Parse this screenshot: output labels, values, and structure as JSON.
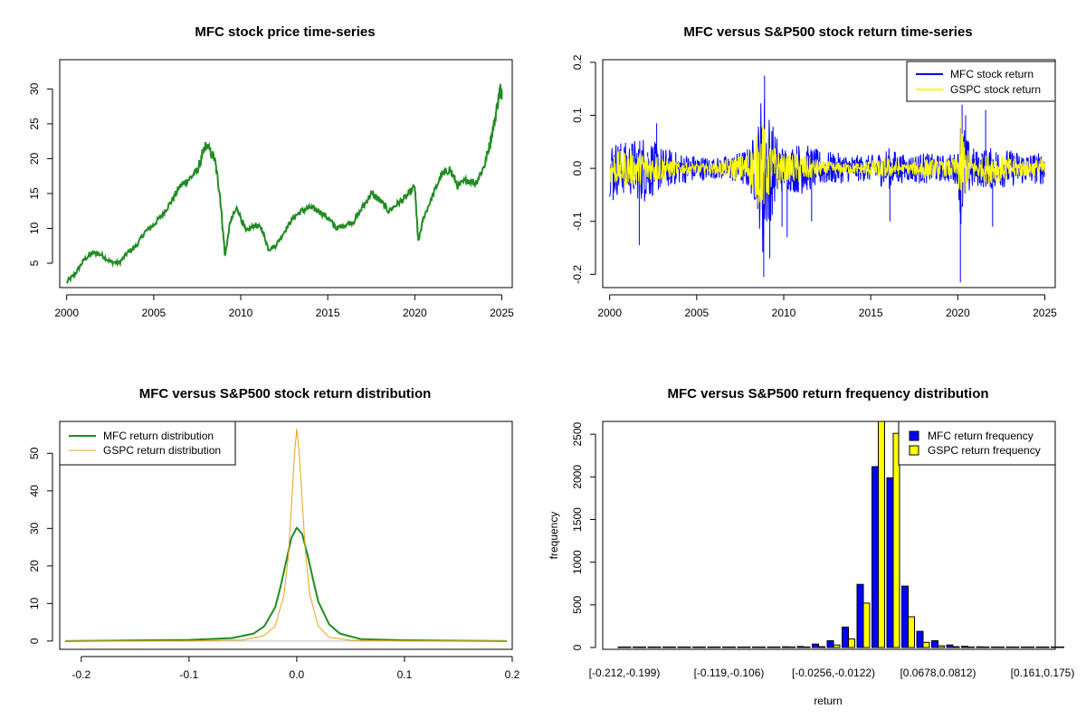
{
  "panels": {
    "p1": {
      "title": "MFC stock price time-series"
    },
    "p2": {
      "title": "MFC versus S&P500 stock return time-series"
    },
    "p3": {
      "title": "MFC versus S&P500 stock return distribution"
    },
    "p4": {
      "title": "MFC versus S&P500 return frequency distribution"
    }
  },
  "chart_data": [
    {
      "type": "line",
      "title": "MFC stock price time-series",
      "xlabel": "",
      "ylabel": "",
      "xlim": [
        1999.6,
        2025.6
      ],
      "ylim": [
        1.5,
        34.2
      ],
      "xticks": [
        2000,
        2005,
        2010,
        2015,
        2020,
        2025
      ],
      "yticks": [
        5,
        10,
        15,
        20,
        25,
        30
      ],
      "color": "#228B22",
      "x": [
        2000.0,
        2000.5,
        2001.0,
        2001.5,
        2002.0,
        2002.5,
        2003.0,
        2003.5,
        2004.0,
        2004.5,
        2005.0,
        2005.5,
        2006.0,
        2006.5,
        2007.0,
        2007.5,
        2007.8,
        2008.0,
        2008.5,
        2008.8,
        2009.1,
        2009.4,
        2009.8,
        2010.3,
        2010.8,
        2011.2,
        2011.6,
        2012.0,
        2012.5,
        2013.0,
        2013.5,
        2014.0,
        2014.5,
        2015.0,
        2015.5,
        2016.0,
        2016.5,
        2017.0,
        2017.5,
        2018.0,
        2018.5,
        2019.0,
        2019.5,
        2020.0,
        2020.2,
        2020.5,
        2021.0,
        2021.5,
        2022.0,
        2022.5,
        2023.0,
        2023.5,
        2024.0,
        2024.3,
        2024.6,
        2024.9,
        2025.0
      ],
      "y": [
        2.3,
        3.5,
        5.5,
        6.5,
        6.2,
        5.2,
        5.0,
        6.5,
        7.5,
        9.5,
        10.5,
        12.0,
        13.8,
        16.0,
        17.0,
        18.2,
        20.5,
        22.0,
        20.0,
        15.0,
        6.0,
        11.0,
        13.0,
        9.5,
        10.5,
        10.0,
        7.0,
        7.5,
        9.5,
        11.5,
        12.5,
        13.0,
        12.5,
        11.5,
        10.0,
        10.5,
        11.0,
        13.0,
        15.0,
        14.0,
        12.5,
        13.5,
        14.5,
        16.0,
        8.0,
        11.5,
        14.5,
        17.5,
        18.5,
        16.0,
        17.0,
        16.5,
        19.0,
        22.0,
        25.5,
        30.0,
        29.5
      ]
    },
    {
      "type": "line",
      "title": "MFC versus S&P500 stock return time-series",
      "xlabel": "",
      "ylabel": "",
      "xlim": [
        1999.6,
        2025.6
      ],
      "ylim": [
        -0.225,
        0.205
      ],
      "xticks": [
        2000,
        2005,
        2010,
        2015,
        2020,
        2025
      ],
      "yticks": [
        -0.2,
        -0.1,
        0.0,
        0.1,
        0.2
      ],
      "ytick_labels": [
        "-0.2",
        "-0.1",
        "0.0",
        "0.1",
        "0.2"
      ],
      "legend": [
        {
          "label": "MFC stock return",
          "color": "#0000FF"
        },
        {
          "label": "GSPC stock return",
          "color": "#FFFF00"
        }
      ],
      "legend_position": "top-right",
      "series": [
        {
          "name": "MFC stock return",
          "color": "#0000FF",
          "envelope_x": [
            2000,
            2001,
            2002,
            2003,
            2004,
            2005,
            2006,
            2007,
            2008,
            2008.5,
            2008.8,
            2009.0,
            2009.5,
            2010,
            2011,
            2012,
            2013,
            2014,
            2015,
            2016,
            2017,
            2018,
            2019,
            2020.0,
            2020.2,
            2020.5,
            2021,
            2022,
            2023,
            2024,
            2025
          ],
          "envelope": [
            0.055,
            0.05,
            0.065,
            0.04,
            0.03,
            0.025,
            0.02,
            0.025,
            0.04,
            0.08,
            0.175,
            0.13,
            0.07,
            0.04,
            0.05,
            0.035,
            0.03,
            0.025,
            0.025,
            0.04,
            0.025,
            0.03,
            0.025,
            0.03,
            0.12,
            0.06,
            0.035,
            0.04,
            0.035,
            0.03,
            0.03
          ],
          "spikes": [
            [
              2000.2,
              -0.06
            ],
            [
              2001.7,
              -0.145
            ],
            [
              2002.7,
              0.085
            ],
            [
              2008.85,
              -0.205
            ],
            [
              2008.9,
              0.175
            ],
            [
              2009.2,
              -0.17
            ],
            [
              2009.9,
              -0.11
            ],
            [
              2010.2,
              -0.13
            ],
            [
              2011.6,
              -0.1
            ],
            [
              2016.1,
              -0.1
            ],
            [
              2020.15,
              -0.215
            ],
            [
              2020.25,
              0.12
            ],
            [
              2021.6,
              0.11
            ],
            [
              2022.0,
              -0.11
            ],
            [
              2020.45,
              0.1
            ]
          ]
        },
        {
          "name": "GSPC stock return",
          "color": "#FFFF00",
          "envelope_x": [
            2000,
            2001,
            2002,
            2003,
            2004,
            2005,
            2006,
            2007,
            2008,
            2008.8,
            2009.2,
            2010,
            2011,
            2012,
            2013,
            2014,
            2015,
            2016,
            2017,
            2018,
            2019,
            2020.0,
            2020.2,
            2020.5,
            2021,
            2022,
            2023,
            2024,
            2025
          ],
          "envelope": [
            0.03,
            0.035,
            0.03,
            0.025,
            0.012,
            0.01,
            0.01,
            0.02,
            0.03,
            0.09,
            0.05,
            0.025,
            0.03,
            0.015,
            0.012,
            0.01,
            0.015,
            0.02,
            0.008,
            0.02,
            0.015,
            0.02,
            0.1,
            0.04,
            0.02,
            0.03,
            0.02,
            0.015,
            0.02
          ]
        }
      ]
    },
    {
      "type": "line",
      "title": "MFC versus S&P500 stock return distribution",
      "xlabel": "",
      "ylabel": "",
      "xlim": [
        -0.22,
        0.2
      ],
      "ylim": [
        -2.2,
        58.5
      ],
      "xticks": [
        -0.2,
        -0.1,
        0.0,
        0.1,
        0.2
      ],
      "xtick_labels": [
        "-0.2",
        "-0.1",
        "0.0",
        "0.1",
        "0.2"
      ],
      "yticks": [
        0,
        10,
        20,
        30,
        40,
        50
      ],
      "legend": [
        {
          "label": "MFC return distribution",
          "color": "#228B22"
        },
        {
          "label": "GSPC return distribution",
          "color": "#E8A317"
        }
      ],
      "legend_position": "top-left",
      "series": [
        {
          "name": "MFC return distribution",
          "color": "#228B22",
          "x": [
            -0.215,
            -0.1,
            -0.06,
            -0.04,
            -0.03,
            -0.02,
            -0.015,
            -0.01,
            -0.005,
            0.0,
            0.005,
            0.01,
            0.015,
            0.02,
            0.03,
            0.04,
            0.06,
            0.1,
            0.195
          ],
          "y": [
            0,
            0.3,
            0.8,
            2.0,
            4.0,
            9.0,
            14.5,
            21.0,
            27.5,
            30.2,
            28.5,
            23.0,
            16.5,
            10.5,
            4.5,
            2.0,
            0.5,
            0.2,
            0
          ]
        },
        {
          "name": "GSPC return distribution",
          "color": "#E8A317",
          "x": [
            -0.215,
            -0.1,
            -0.05,
            -0.03,
            -0.02,
            -0.012,
            -0.008,
            -0.004,
            -0.002,
            0.0,
            0.002,
            0.004,
            0.008,
            0.012,
            0.02,
            0.03,
            0.05,
            0.1,
            0.195
          ],
          "y": [
            0,
            0.05,
            0.3,
            1.5,
            4.0,
            12.0,
            22.0,
            40.0,
            50.0,
            56.5,
            51.0,
            42.0,
            24.0,
            12.5,
            4.0,
            1.0,
            0.2,
            0.05,
            0
          ]
        }
      ]
    },
    {
      "type": "bar",
      "title": "MFC versus S&P500 return frequency distribution",
      "xlabel": "return",
      "ylabel": "frequency",
      "ylim": [
        0,
        2650
      ],
      "yticks": [
        0,
        500,
        1000,
        1500,
        2000,
        2500
      ],
      "shown_category_labels": [
        "[-0.212,-0.199)",
        "[-0.119,-0.106)",
        "[-0.0256,-0.0122)",
        "[0.0678,0.0812)",
        "[0.161,0.175)"
      ],
      "shown_label_indices": [
        0,
        7,
        14,
        21,
        28
      ],
      "legend": [
        {
          "label": "MFC return frequency",
          "color": "#0000FF"
        },
        {
          "label": "GSPC return frequency",
          "color": "#FFFF00"
        }
      ],
      "legend_position": "top-right",
      "series": [
        {
          "name": "MFC return frequency",
          "color": "#0000FF",
          "values": [
            1,
            1,
            1,
            1,
            2,
            2,
            2,
            3,
            3,
            4,
            5,
            8,
            12,
            40,
            80,
            240,
            740,
            2120,
            1990,
            720,
            190,
            80,
            30,
            14,
            8,
            5,
            3,
            2,
            2,
            1
          ]
        },
        {
          "name": "GSPC return frequency",
          "color": "#FFFF00",
          "values": [
            0,
            0,
            0,
            0,
            0,
            0,
            0,
            0,
            0,
            0,
            1,
            1,
            2,
            10,
            30,
            100,
            520,
            2700,
            2510,
            360,
            60,
            20,
            10,
            3,
            1,
            1,
            0,
            0,
            0,
            0
          ]
        }
      ]
    }
  ]
}
